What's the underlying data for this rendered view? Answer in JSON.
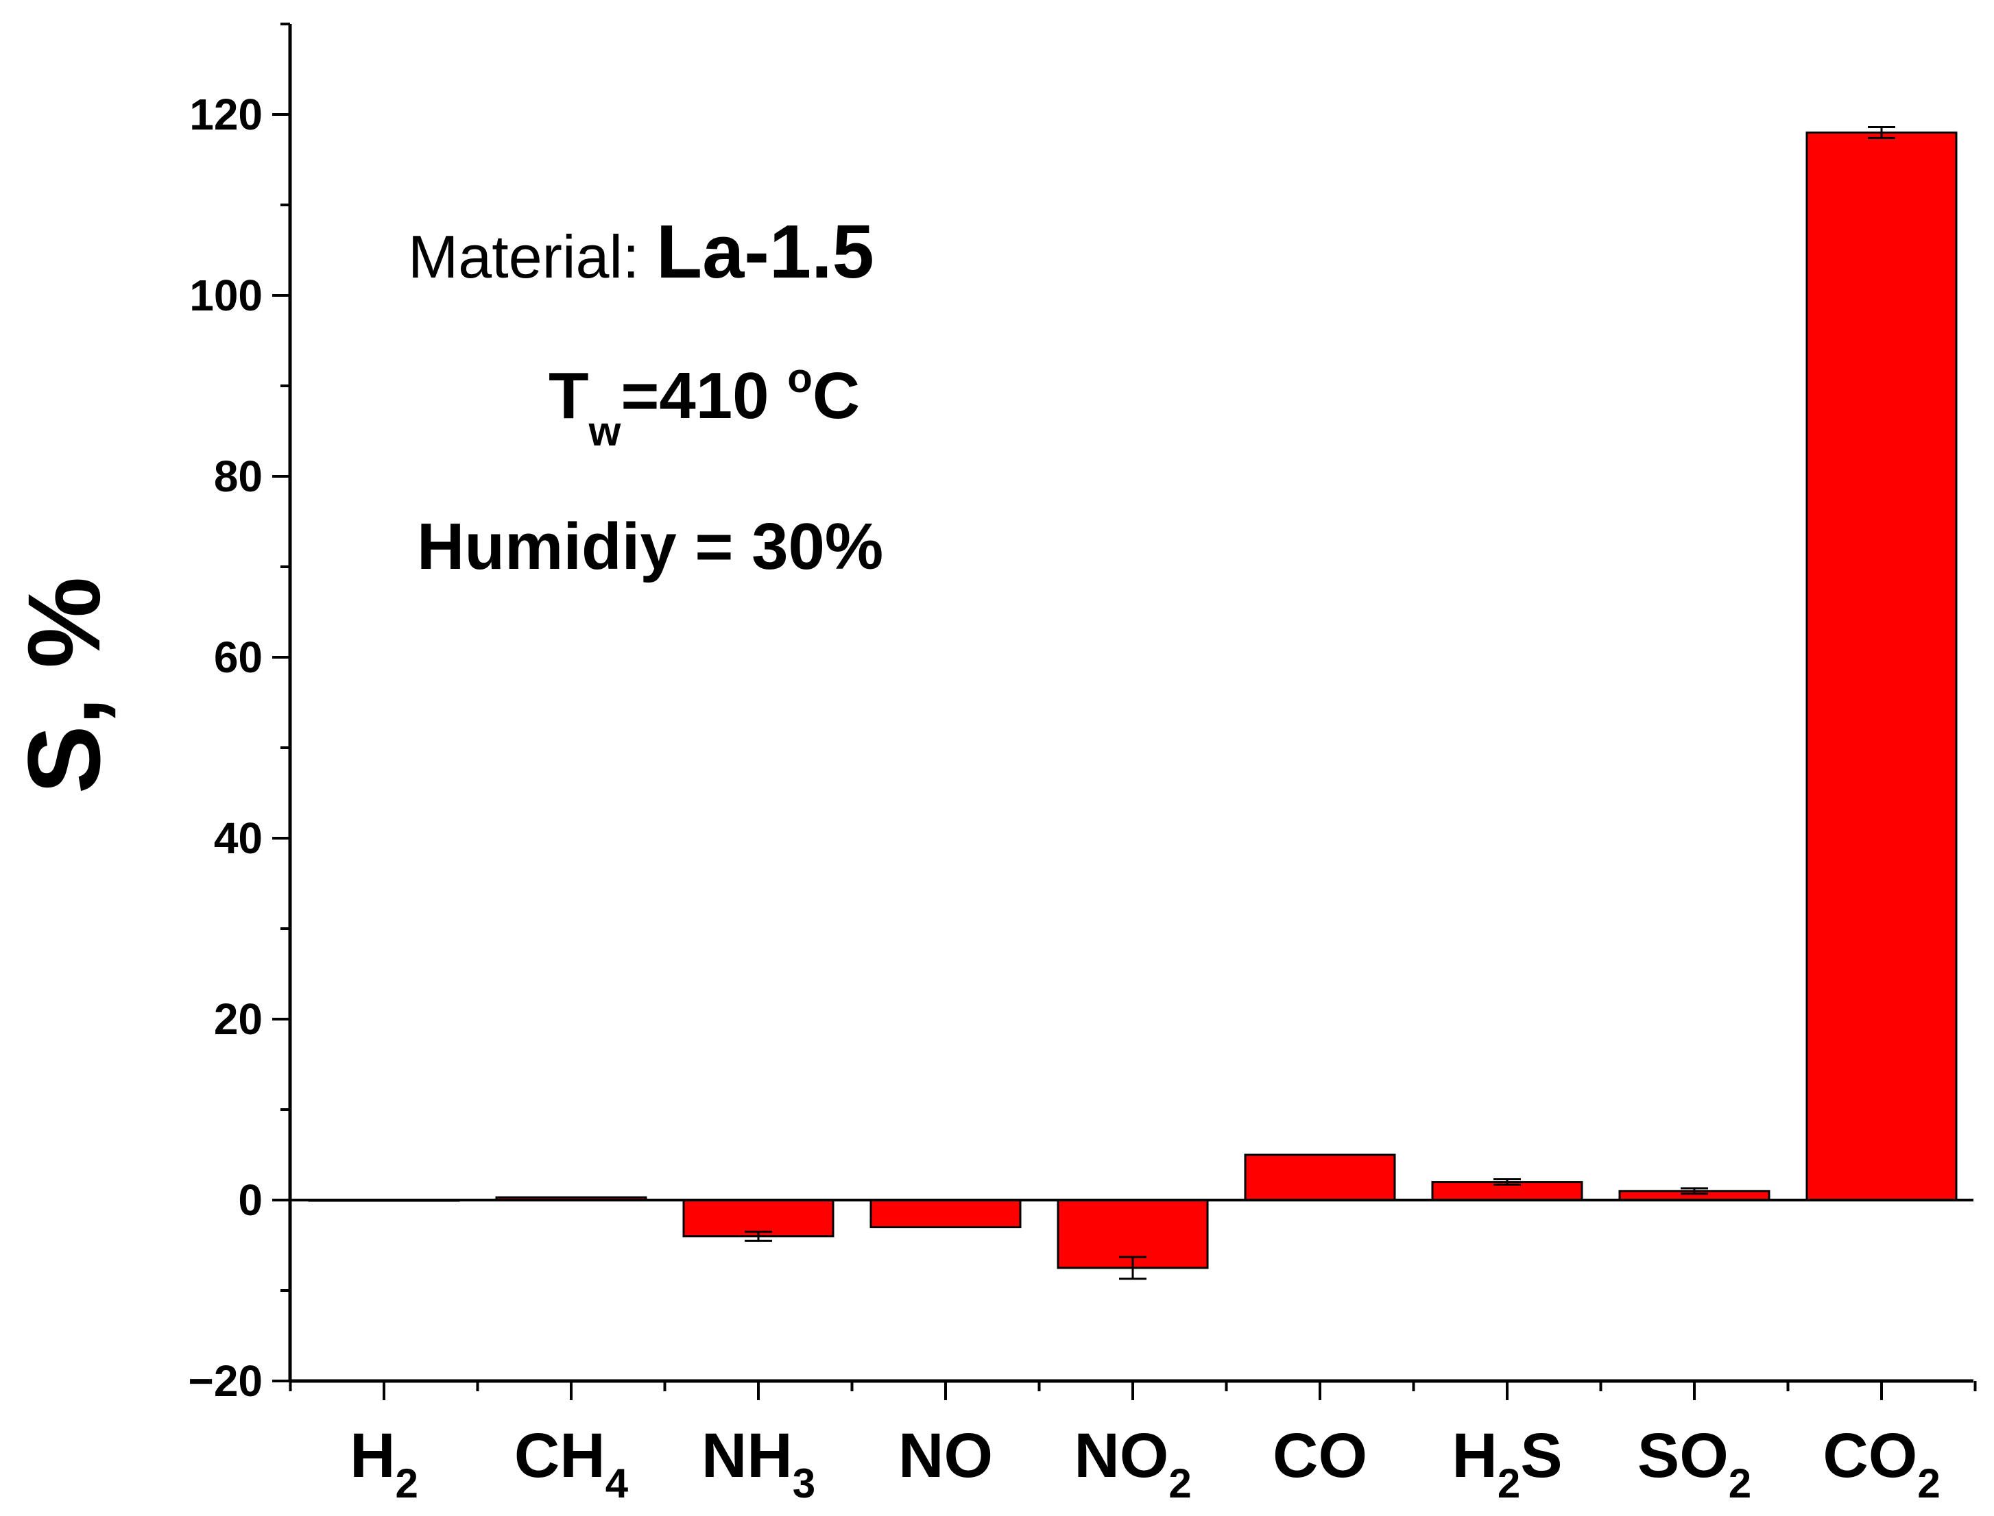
{
  "chart_data": {
    "type": "bar",
    "categories": [
      "H2",
      "CH4",
      "NH3",
      "NO",
      "NO2",
      "CO",
      "H2S",
      "SO2",
      "CO2"
    ],
    "category_display": [
      {
        "base": "H",
        "sub": "2",
        "tail": ""
      },
      {
        "base": "CH",
        "sub": "4",
        "tail": ""
      },
      {
        "base": "NH",
        "sub": "3",
        "tail": ""
      },
      {
        "base": "NO",
        "sub": "",
        "tail": ""
      },
      {
        "base": "NO",
        "sub": "2",
        "tail": ""
      },
      {
        "base": "CO",
        "sub": "",
        "tail": ""
      },
      {
        "base": "H",
        "sub": "2",
        "tail": "S"
      },
      {
        "base": "SO",
        "sub": "2",
        "tail": ""
      },
      {
        "base": "CO",
        "sub": "2",
        "tail": ""
      }
    ],
    "values": [
      0,
      0.3,
      -4.0,
      -3.0,
      -7.5,
      5.0,
      2.0,
      1.0,
      118.0
    ],
    "errors": [
      0,
      0,
      0.5,
      0,
      1.2,
      0,
      0.3,
      0.3,
      0.6
    ],
    "ylabel": "S, %",
    "xlabel": "",
    "ylim": [
      -20,
      130
    ],
    "yticks": [
      -20,
      0,
      20,
      40,
      60,
      80,
      100,
      120
    ],
    "bar_color": "#ff0000",
    "grid": false,
    "annotations": {
      "material_label": "Material: ",
      "material_value": "La-1.5",
      "temp_base": "T",
      "temp_sub": "w",
      "temp_value": "=410 ",
      "temp_degree": "o",
      "temp_unit": "C",
      "humidity": "Humidiy = 30%"
    }
  }
}
